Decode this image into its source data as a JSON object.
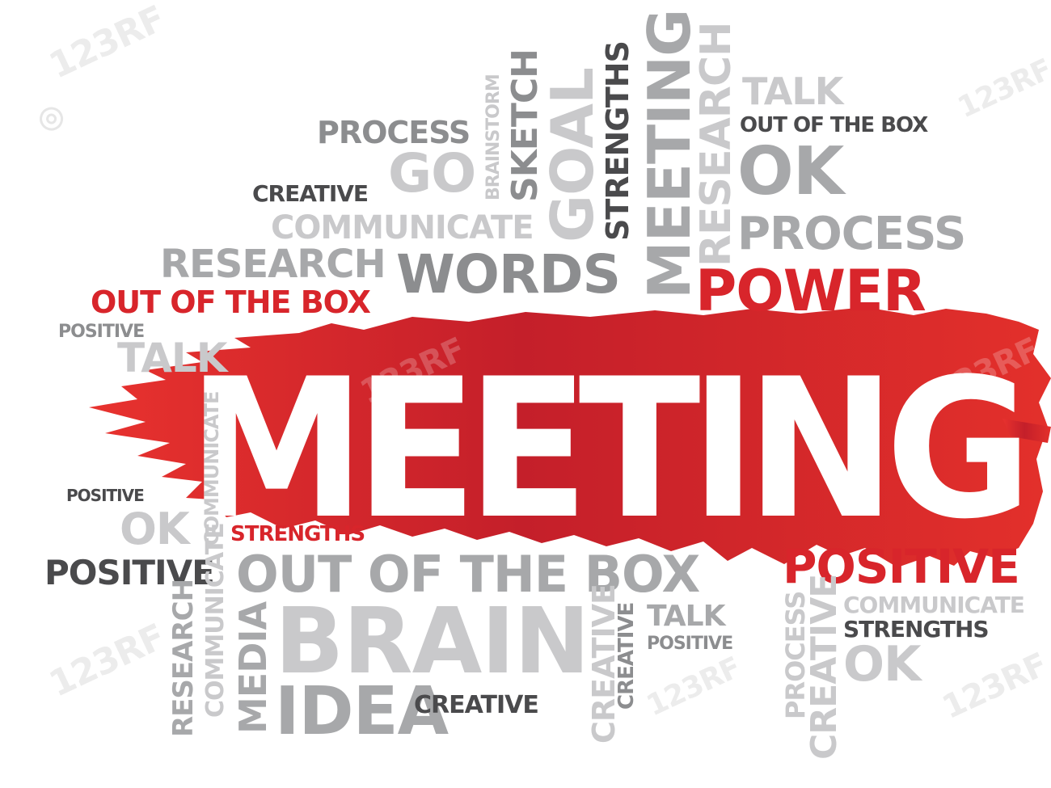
{
  "headline": "MEETING",
  "words": {
    "process_top": "PROCESS",
    "go": "GO",
    "brainstorm": "BRAINSTORM",
    "sketch": "SKETCH",
    "goal": "GOAL",
    "strengths_top": "STRENGTHS",
    "meeting_vertical": "MEETING",
    "research_vertical": "RESEARCH",
    "talk_top": "TALK",
    "out_of_the_box_top": "OUT OF THE BOX",
    "ok_top": "OK",
    "process_right": "PROCESS",
    "creative_top": "CREATIVE",
    "communicate_top": "COMMUNICATE",
    "research_left": "RESEARCH",
    "words": "WORDS",
    "power": "POWER",
    "out_of_the_box_red": "OUT OF THE BOX",
    "positive_left_1": "POSITIVE",
    "talk_left": "TALK",
    "positive_left_2": "POSITIVE",
    "ok_left": "OK",
    "strengths_red": "STRENGTHS",
    "positive_left_big": "POSITIVE",
    "out_of_the_box_bottom": "OUT OF THE BOX",
    "positive_red": "POSITIVE",
    "research_vertical_bottom": "RESEARCH",
    "communicate_vertical": "COMMUNICATE",
    "communicate_vertical_2": "COMMUNICATE",
    "media": "MEDIA",
    "brain": "BRAIN",
    "idea": "IDEA",
    "creative_bottom": "CREATIVE",
    "creative_vertical_1": "CREATIVE",
    "creative_vertical_2": "CREATIVE",
    "talk_bottom": "TALK",
    "positive_bottom": "POSITIVE",
    "process_vertical": "PROCESS",
    "creative_vertical_3": "CREATIVE",
    "communicate_right": "COMMUNICATE",
    "strengths_right": "STRENGTHS",
    "ok_right": "OK"
  },
  "watermark": "123RF",
  "colors": {
    "accent_red": "#d8252b",
    "dark_grey": "#4a4a4c",
    "mid_grey": "#8c8d8f",
    "light_grey": "#a7a8aa",
    "very_light_grey": "#c9c9cb"
  }
}
